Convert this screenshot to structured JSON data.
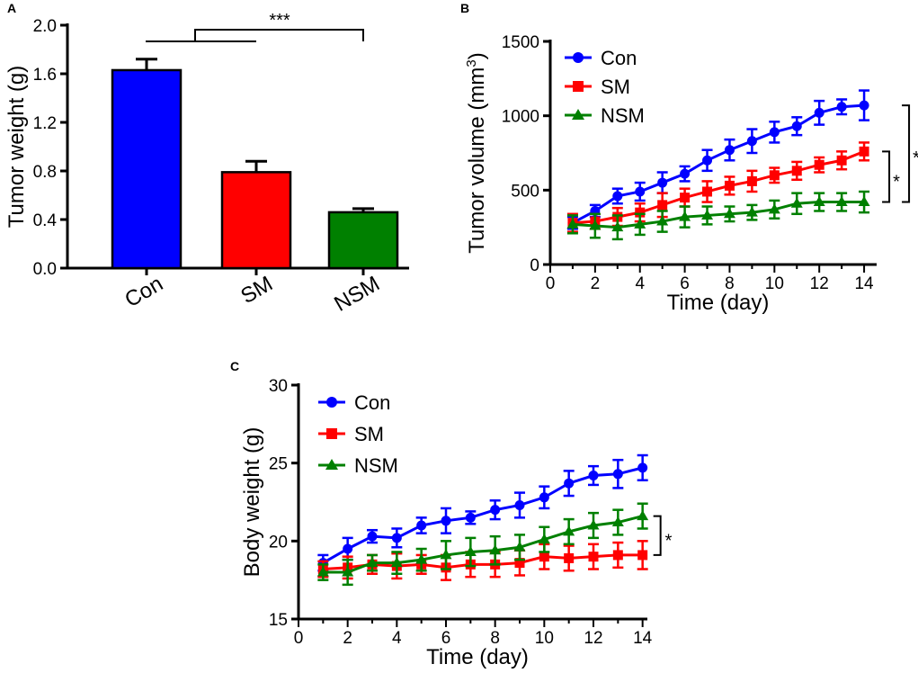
{
  "chart_data": [
    {
      "panel": "A",
      "type": "bar",
      "title": "",
      "xlabel": "",
      "ylabel": "Tumor weight (g)",
      "ylim": [
        0,
        2.0
      ],
      "yticks": [
        "0.0",
        "0.4",
        "0.8",
        "1.2",
        "1.6",
        "2.0"
      ],
      "categories": [
        "Con",
        "SM",
        "NSM"
      ],
      "values": [
        1.63,
        0.79,
        0.46
      ],
      "errors": [
        0.09,
        0.09,
        0.03
      ],
      "colors": [
        "#0000FF",
        "#FF0000",
        "#008000"
      ],
      "significance": "***"
    },
    {
      "panel": "B",
      "type": "line",
      "title": "",
      "xlabel": "Time (day)",
      "ylabel": "Tumor volume (mm3)",
      "ylabel_main": "Tumor volume (mm",
      "ylabel_sup": "3",
      "ylabel_close": ")",
      "xlim": [
        0,
        15
      ],
      "ylim": [
        0,
        1500
      ],
      "xticks": [
        "0",
        "2",
        "4",
        "6",
        "8",
        "10",
        "12",
        "14"
      ],
      "yticks": [
        "0",
        "500",
        "1000",
        "1500"
      ],
      "x": [
        1,
        2,
        3,
        4,
        5,
        6,
        7,
        8,
        9,
        10,
        11,
        12,
        13,
        14
      ],
      "series": [
        {
          "name": "Con",
          "color": "#0000FF",
          "marker": "circle",
          "values": [
            280,
            360,
            460,
            490,
            550,
            610,
            700,
            770,
            830,
            890,
            930,
            1020,
            1060,
            1070
          ],
          "errors": [
            40,
            40,
            50,
            60,
            70,
            50,
            70,
            70,
            80,
            70,
            60,
            80,
            50,
            100
          ]
        },
        {
          "name": "SM",
          "color": "#FF0000",
          "marker": "square",
          "values": [
            280,
            290,
            320,
            350,
            400,
            450,
            490,
            530,
            560,
            600,
            630,
            670,
            700,
            760
          ],
          "errors": [
            60,
            50,
            60,
            60,
            80,
            60,
            70,
            60,
            70,
            50,
            60,
            50,
            60,
            60
          ]
        },
        {
          "name": "NSM",
          "color": "#008000",
          "marker": "triangle",
          "values": [
            270,
            260,
            250,
            270,
            290,
            320,
            330,
            340,
            350,
            370,
            410,
            420,
            420,
            420
          ],
          "errors": [
            60,
            80,
            80,
            70,
            70,
            70,
            60,
            50,
            50,
            60,
            70,
            60,
            60,
            70
          ]
        }
      ],
      "legend": "top-left",
      "significance": [
        "*",
        "*"
      ]
    },
    {
      "panel": "C",
      "type": "line",
      "title": "",
      "xlabel": "Time (day)",
      "ylabel": "Body weight (g)",
      "xlim": [
        0,
        15
      ],
      "ylim": [
        15,
        30
      ],
      "xticks": [
        "0",
        "2",
        "4",
        "6",
        "8",
        "10",
        "12",
        "14"
      ],
      "yticks": [
        "15",
        "20",
        "25",
        "30"
      ],
      "x": [
        1,
        2,
        3,
        4,
        5,
        6,
        7,
        8,
        9,
        10,
        11,
        12,
        13,
        14
      ],
      "series": [
        {
          "name": "Con",
          "color": "#0000FF",
          "marker": "circle",
          "values": [
            18.6,
            19.5,
            20.3,
            20.2,
            21.0,
            21.3,
            21.5,
            22.0,
            22.3,
            22.8,
            23.7,
            24.2,
            24.3,
            24.7
          ],
          "errors": [
            0.5,
            0.7,
            0.4,
            0.6,
            0.5,
            0.8,
            0.4,
            0.6,
            0.8,
            0.7,
            0.8,
            0.6,
            0.9,
            0.8
          ]
        },
        {
          "name": "SM",
          "color": "#FF0000",
          "marker": "square",
          "values": [
            18.2,
            18.3,
            18.5,
            18.4,
            18.5,
            18.3,
            18.5,
            18.5,
            18.6,
            19.0,
            18.9,
            19.0,
            19.1,
            19.1
          ],
          "errors": [
            0.5,
            0.7,
            0.6,
            0.8,
            0.6,
            0.8,
            0.8,
            0.8,
            0.8,
            0.8,
            0.8,
            0.8,
            0.8,
            0.9
          ]
        },
        {
          "name": "NSM",
          "color": "#008000",
          "marker": "triangle",
          "values": [
            18.0,
            18.0,
            18.6,
            18.6,
            18.8,
            19.1,
            19.3,
            19.4,
            19.6,
            20.1,
            20.6,
            21.0,
            21.2,
            21.6
          ],
          "errors": [
            0.5,
            0.8,
            0.5,
            0.7,
            0.7,
            0.9,
            0.9,
            0.9,
            0.8,
            0.8,
            0.8,
            0.8,
            0.8,
            0.8
          ]
        }
      ],
      "legend": "top-left",
      "significance": [
        "*"
      ]
    }
  ]
}
